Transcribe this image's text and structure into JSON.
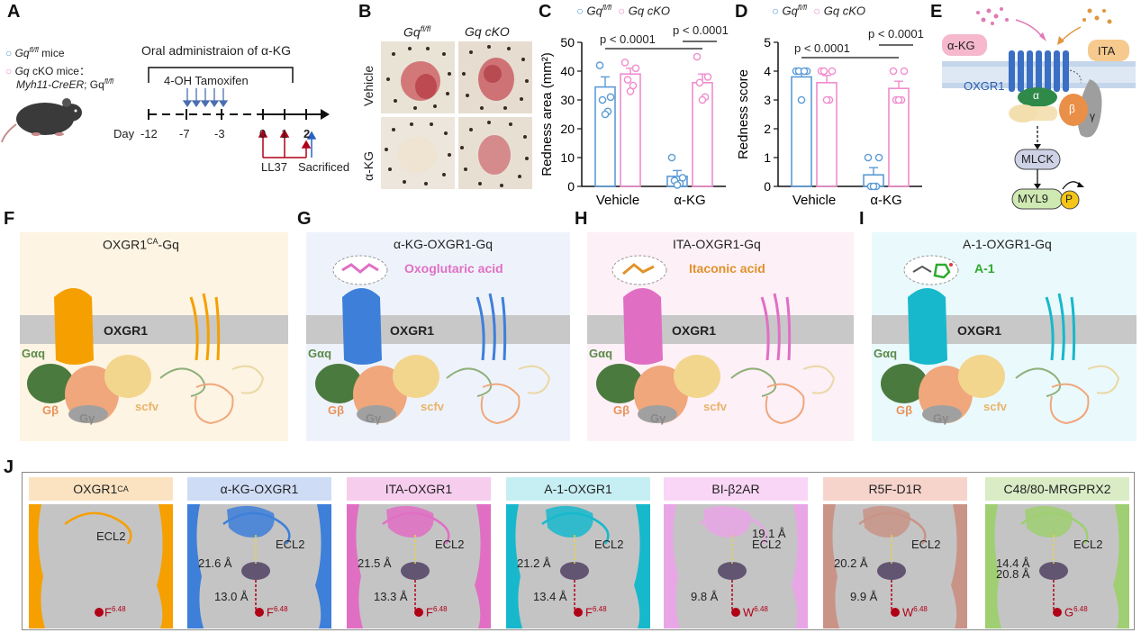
{
  "panels": {
    "A": {
      "label": "A",
      "legend_wt": "Gq",
      "legend_wt_sup": "fl/fl",
      "legend_wt_suffix": " mice",
      "legend_cko": "Gq",
      "legend_cko_suffix": " cKO mice：",
      "legend_cko_line2_a": "Myh11-CreER",
      "legend_cko_line2_b": "; Gq",
      "legend_cko_line2_sup": "fl/fl",
      "oral": "Oral administraion of α-KG",
      "tamoxifen": "4-OH Tamoxifen",
      "day": "Day",
      "ticks": [
        "-12",
        "-7",
        "-3",
        "0",
        "1",
        "2"
      ],
      "ll37": "LL37",
      "sacrificed": "Sacrificed"
    },
    "B": {
      "label": "B",
      "col1": "Gq",
      "col1_sup": "fl/fl",
      "col2": "Gq cKO",
      "row1": "Vehicle",
      "row2": "α-KG"
    },
    "C": {
      "label": "C",
      "legend_a": "Gq",
      "legend_a_sup": "fl/fl",
      "legend_b": "Gq cKO",
      "p1": "p < 0.0001",
      "p2": "p < 0.0001"
    },
    "D": {
      "label": "D",
      "legend_a": "Gq",
      "legend_a_sup": "fl/fl",
      "legend_b": "Gq cKO",
      "p1": "p < 0.0001",
      "p2": "p < 0.0001"
    },
    "E": {
      "label": "E",
      "akg": "α-KG",
      "ita": "ITA",
      "receptor": "OXGR1",
      "alpha": "α",
      "beta": "β",
      "gamma": "γ",
      "mlck": "MLCK",
      "myl9": "MYL9",
      "p": "P"
    },
    "F": {
      "label": "F",
      "title": "OXGR1",
      "title_sup": "CA",
      "title_suffix": "-Gq",
      "mem": "OXGR1",
      "ga": "Gαq",
      "gb": "Gβ",
      "gg": "Gγ",
      "scfv": "scfv"
    },
    "G": {
      "label": "G",
      "title": "α-KG-OXGR1-Gq",
      "ligand": "Oxoglutaric acid",
      "mem": "OXGR1",
      "ga": "Gαq",
      "gb": "Gβ",
      "gg": "Gγ",
      "scfv": "scfv"
    },
    "H": {
      "label": "H",
      "title": "ITA-OXGR1-Gq",
      "ligand": "Itaconic acid",
      "mem": "OXGR1",
      "ga": "Gαq",
      "gb": "Gβ",
      "gg": "Gγ",
      "scfv": "scfv"
    },
    "I": {
      "label": "I",
      "title": "A-1-OXGR1-Gq",
      "ligand": "A-1",
      "mem": "OXGR1",
      "ga": "Gαq",
      "gb": "Gβ",
      "gg": "Gγ",
      "scfv": "scfv"
    },
    "J": {
      "label": "J",
      "items": [
        {
          "title": "OXGR1",
          "title_sup": "CA",
          "ecl": "ECL2",
          "d1": "",
          "d2": "",
          "res": "F",
          "res_sup": "6.48"
        },
        {
          "title": "α-KG-OXGR1",
          "title_sup": "",
          "ecl": "ECL2",
          "d1": "21.6 Å",
          "d2": "13.0 Å",
          "res": "F",
          "res_sup": "6.48"
        },
        {
          "title": "ITA-OXGR1",
          "title_sup": "",
          "ecl": "ECL2",
          "d1": "21.5 Å",
          "d2": "13.3 Å",
          "res": "F",
          "res_sup": "6.48"
        },
        {
          "title": "A-1-OXGR1",
          "title_sup": "",
          "ecl": "ECL2",
          "d1": "21.2 Å",
          "d2": "13.4 Å",
          "res": "F",
          "res_sup": "6.48"
        },
        {
          "title": "BI-β2AR",
          "title_sup": "",
          "ecl": "ECL2",
          "d1": "19.1 Å",
          "d2": "9.8 Å",
          "res": "W",
          "res_sup": "6.48"
        },
        {
          "title": "R5F-D1R",
          "title_sup": "",
          "ecl": "ECL2",
          "d1": "20.2 Å",
          "d2": "9.9 Å",
          "res": "W",
          "res_sup": "6.48"
        },
        {
          "title": "C48/80-MRGPRX2",
          "title_sup": "",
          "ecl": "ECL2",
          "d1": "14.4 Å",
          "d2": "20.8 Å",
          "res": "G",
          "res_sup": "6.48"
        }
      ]
    }
  },
  "colors": {
    "wt": "#5b9bd5",
    "cko": "#f08ccd",
    "oxgr1_ca": "#f5a000",
    "akg": "#3e7fd9",
    "ita": "#e06fc4",
    "a1": "#17b8cc",
    "bi_b2ar": "#e8a6e6",
    "r5f_d1r": "#c99487",
    "c48": "#9fcf72",
    "red": "#b00016"
  },
  "chart_data": [
    {
      "type": "bar",
      "panel": "C",
      "title": "",
      "xlabel": "",
      "ylabel": "Redness area (mm²)",
      "ylim": [
        0,
        50
      ],
      "yticks": [
        0,
        10,
        20,
        30,
        40,
        50
      ],
      "categories": [
        "Vehicle",
        "α-KG"
      ],
      "series": [
        {
          "name": "Gq fl/fl",
          "values": [
            34.5,
            3.5
          ],
          "sem": [
            3.5,
            2
          ],
          "points": [
            [
              42,
              31,
              30,
              26,
              25
            ],
            [
              10,
              3,
              2,
              1,
              0.5
            ]
          ]
        },
        {
          "name": "Gq cKO",
          "values": [
            39,
            36
          ],
          "sem": [
            2,
            3
          ],
          "points": [
            [
              43,
              41,
              37,
              35,
              33
            ],
            [
              45,
              38,
              36,
              31,
              30
            ]
          ]
        }
      ],
      "legend": "top"
    },
    {
      "type": "bar",
      "panel": "D",
      "title": "",
      "xlabel": "",
      "ylabel": "Redness score",
      "ylim": [
        0,
        5
      ],
      "yticks": [
        0,
        1,
        2,
        3,
        4,
        5
      ],
      "categories": [
        "Vehicle",
        "α-KG"
      ],
      "series": [
        {
          "name": "Gq fl/fl",
          "values": [
            3.8,
            0.4
          ],
          "sem": [
            0.2,
            0.25
          ],
          "points": [
            [
              4,
              4,
              4,
              4,
              3
            ],
            [
              1,
              1,
              0,
              0,
              0
            ]
          ]
        },
        {
          "name": "Gq cKO",
          "values": [
            3.6,
            3.4
          ],
          "sem": [
            0.25,
            0.25
          ],
          "points": [
            [
              4,
              4,
              4,
              3,
              3
            ],
            [
              4,
              4,
              3,
              3,
              3
            ]
          ]
        }
      ],
      "legend": "top"
    }
  ]
}
